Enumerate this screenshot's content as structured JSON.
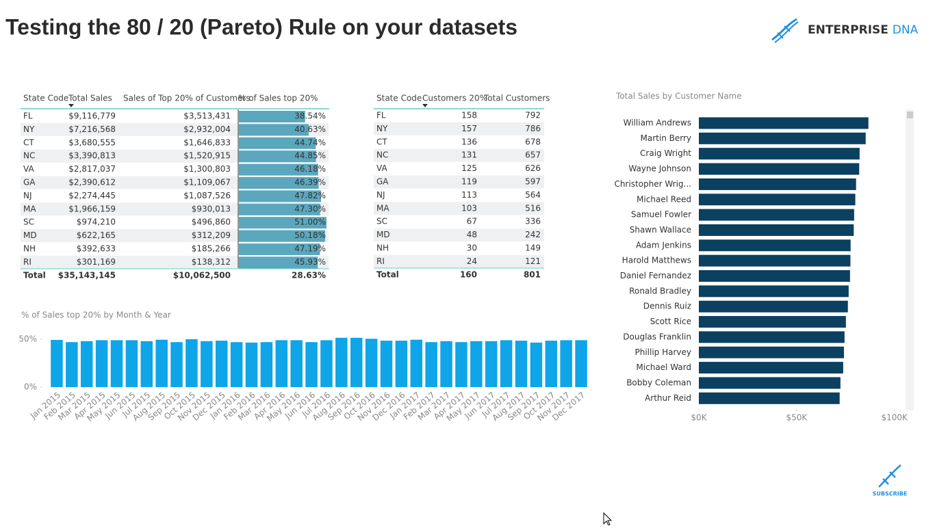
{
  "header": {
    "title": "Testing the 80 / 20 (Pareto) Rule on your datasets",
    "logo_bold": "ENTERPRISE",
    "logo_light": "DNA",
    "subscribe": "SUBSCRIBE"
  },
  "table1": {
    "columns": [
      "State Code",
      "Total Sales",
      "Sales of Top 20% of Customers",
      "% of Sales top 20%"
    ],
    "rows": [
      [
        "FL",
        "$9,116,779",
        "$3,513,431",
        {
          "value": 38.54,
          "label": "38.54%"
        }
      ],
      [
        "NY",
        "$7,216,568",
        "$2,932,004",
        {
          "value": 40.63,
          "label": "40.63%"
        }
      ],
      [
        "CT",
        "$3,680,555",
        "$1,646,833",
        {
          "value": 44.74,
          "label": "44.74%"
        }
      ],
      [
        "NC",
        "$3,390,813",
        "$1,520,915",
        {
          "value": 44.85,
          "label": "44.85%"
        }
      ],
      [
        "VA",
        "$2,817,037",
        "$1,300,803",
        {
          "value": 46.18,
          "label": "46.18%"
        }
      ],
      [
        "GA",
        "$2,390,612",
        "$1,109,067",
        {
          "value": 46.39,
          "label": "46.39%"
        }
      ],
      [
        "NJ",
        "$2,274,445",
        "$1,087,526",
        {
          "value": 47.82,
          "label": "47.82%"
        }
      ],
      [
        "MA",
        "$1,966,159",
        "$930,013",
        {
          "value": 47.3,
          "label": "47.30%"
        }
      ],
      [
        "SC",
        "$974,210",
        "$496,860",
        {
          "value": 51.0,
          "label": "51.00%"
        }
      ],
      [
        "MD",
        "$622,165",
        "$312,209",
        {
          "value": 50.18,
          "label": "50.18%"
        }
      ],
      [
        "NH",
        "$392,633",
        "$185,266",
        {
          "value": 47.19,
          "label": "47.19%"
        }
      ],
      [
        "RI",
        "$301,169",
        "$138,312",
        {
          "value": 45.93,
          "label": "45.93%"
        }
      ]
    ],
    "total": [
      "Total",
      "$35,143,145",
      "$10,062,500",
      "28.63%"
    ]
  },
  "table2": {
    "columns": [
      "State Code",
      "Customers 20%",
      "Total Customers"
    ],
    "rows": [
      [
        "FL",
        158,
        792
      ],
      [
        "NY",
        157,
        786
      ],
      [
        "CT",
        136,
        678
      ],
      [
        "NC",
        131,
        657
      ],
      [
        "VA",
        125,
        626
      ],
      [
        "GA",
        119,
        597
      ],
      [
        "NJ",
        113,
        564
      ],
      [
        "MA",
        103,
        516
      ],
      [
        "SC",
        67,
        336
      ],
      [
        "MD",
        48,
        242
      ],
      [
        "NH",
        30,
        149
      ],
      [
        "RI",
        24,
        121
      ]
    ],
    "total": [
      "Total",
      160,
      801
    ]
  },
  "chart_data": [
    {
      "type": "bar",
      "title": "% of Sales top 20% by Month & Year",
      "color": "#0ea5e9",
      "categories": [
        "Jan 2015",
        "Feb 2015",
        "Mar 2015",
        "Apr 2015",
        "May 2015",
        "Jun 2015",
        "Jul 2015",
        "Aug 2015",
        "Sep 2015",
        "Oct 2015",
        "Nov 2015",
        "Dec 2015",
        "Jan 2016",
        "Feb 2016",
        "Mar 2016",
        "Apr 2016",
        "May 2016",
        "Jun 2016",
        "Jul 2016",
        "Aug 2016",
        "Sep 2016",
        "Oct 2016",
        "Nov 2016",
        "Dec 2016",
        "Jan 2017",
        "Feb 2017",
        "Mar 2017",
        "Apr 2017",
        "May 2017",
        "Jun 2017",
        "Jul 2017",
        "Aug 2017",
        "Sep 2017",
        "Oct 2017",
        "Nov 2017",
        "Dec 2017"
      ],
      "values": [
        49.3,
        47,
        48,
        49,
        49,
        49,
        48,
        49.5,
        47,
        50,
        48,
        48.5,
        47,
        46.5,
        47,
        49,
        49,
        47,
        49,
        51.5,
        51.5,
        50.5,
        48.5,
        48.5,
        49.5,
        47,
        48,
        47,
        48,
        48,
        49,
        48.5,
        46.5,
        48.5,
        49,
        49
      ],
      "ylim": [
        0,
        55
      ],
      "yticks": [
        {
          "value": 0,
          "label": "0%"
        },
        {
          "value": 50,
          "label": "50%"
        }
      ]
    },
    {
      "type": "hbar",
      "title": "Total Sales by Customer Name",
      "color": "#0b4060",
      "categories": [
        "William Andrews",
        "Martin Berry",
        "Craig Wright",
        "Wayne Johnson",
        "Christopher Wrig...",
        "Michael Reed",
        "Samuel Fowler",
        "Shawn Wallace",
        "Adam Jenkins",
        "Harold Matthews",
        "Daniel Fernandez",
        "Ronald Bradley",
        "Dennis Ruiz",
        "Scott Rice",
        "Douglas Franklin",
        "Phillip Harvey",
        "Michael Ward",
        "Bobby Coleman",
        "Arthur Reid"
      ],
      "values": [
        86700,
        85300,
        82200,
        82000,
        80400,
        80000,
        79400,
        79200,
        77600,
        77500,
        77300,
        76600,
        76200,
        75200,
        74500,
        74200,
        73800,
        72400,
        72000
      ],
      "xlim": [
        0,
        105000
      ],
      "xticks": [
        {
          "value": 0,
          "label": "$0K"
        },
        {
          "value": 50000,
          "label": "$50K"
        },
        {
          "value": 100000,
          "label": "$100K"
        }
      ]
    }
  ]
}
